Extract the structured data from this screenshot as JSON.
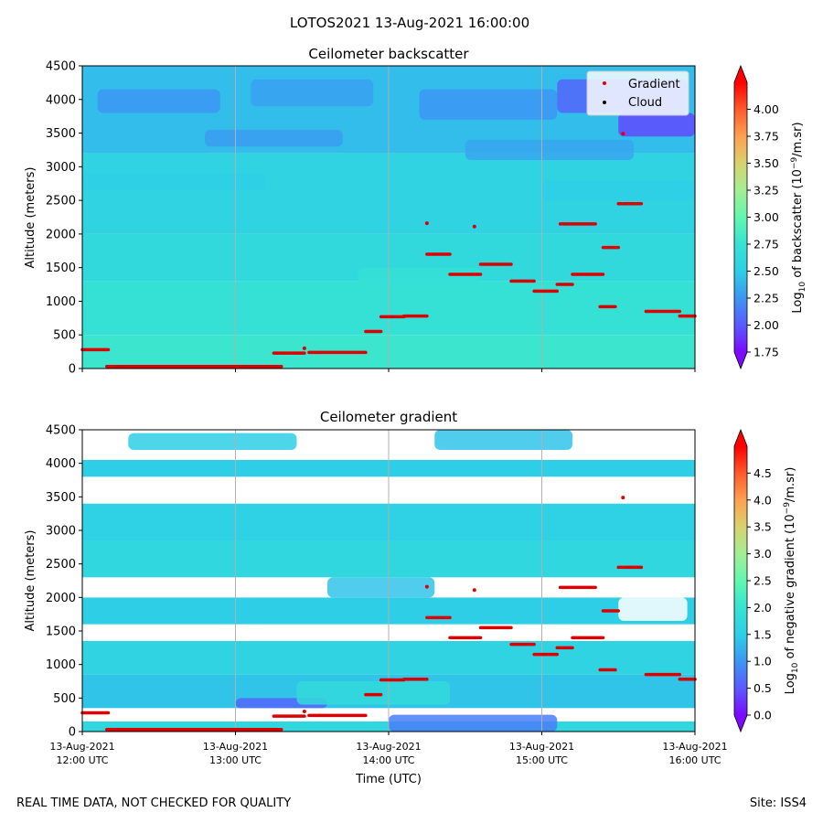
{
  "figure_title": "LOTOS2021 13-Aug-2021 16:00:00",
  "footer_left": "REAL TIME DATA, NOT CHECKED FOR QUALITY",
  "footer_right": "Site: ISS4",
  "colors": {
    "point": "#dd0000",
    "gap": "#ffffff",
    "colormap": [
      "#7b0aff",
      "#5a5afe",
      "#3c96f4",
      "#2ecfe6",
      "#36e3d2",
      "#62f7b0",
      "#a4ee92",
      "#d8d26e",
      "#ffa050",
      "#ff5a2c",
      "#ff0000"
    ]
  },
  "chart_data": [
    {
      "type": "heatmap",
      "name": "backscatter",
      "title": "Ceilometer backscatter",
      "xlabel": "",
      "ylabel": "Altitude (meters)",
      "xlim": [
        0,
        4
      ],
      "ylim": [
        0,
        4500
      ],
      "yticks": [
        "0",
        "500",
        "1000",
        "1500",
        "2000",
        "2500",
        "3000",
        "3500",
        "4000",
        "4500"
      ],
      "xtick_labels_shown": false,
      "colorbar": {
        "label_prefix": "Log",
        "label_sub": "10",
        "label_mid": " of backscatter (10",
        "label_sup": "−9",
        "label_suffix": "/m.sr)",
        "range": [
          1.75,
          4.25
        ],
        "ticks": [
          "1.75",
          "2.00",
          "2.25",
          "2.50",
          "2.75",
          "3.00",
          "3.25",
          "3.50",
          "3.75",
          "4.00"
        ]
      },
      "legend": {
        "position": "top-right",
        "entries": [
          {
            "label": "Gradient",
            "marker": "red-dot"
          },
          {
            "label": "Cloud",
            "marker": "black-dot"
          }
        ]
      },
      "field_layers": [
        {
          "bottom": 0,
          "top": 500,
          "value": 2.78
        },
        {
          "bottom": 500,
          "top": 1300,
          "value": 2.72
        },
        {
          "bottom": 1300,
          "top": 2000,
          "value": 2.62
        },
        {
          "bottom": 2000,
          "top": 3200,
          "value": 2.55
        },
        {
          "bottom": 3200,
          "top": 4500,
          "value": 2.42
        }
      ],
      "field_patches": [
        {
          "x0": 0.1,
          "x1": 0.9,
          "y0": 3800,
          "y1": 4150,
          "value": 2.25
        },
        {
          "x0": 1.1,
          "x1": 1.9,
          "y0": 3900,
          "y1": 4300,
          "value": 2.3
        },
        {
          "x0": 0.8,
          "x1": 1.7,
          "y0": 3300,
          "y1": 3550,
          "value": 2.28
        },
        {
          "x0": 2.2,
          "x1": 3.1,
          "y0": 3700,
          "y1": 4150,
          "value": 2.25
        },
        {
          "x0": 3.1,
          "x1": 3.95,
          "y0": 3800,
          "y1": 4300,
          "value": 2.05
        },
        {
          "x0": 3.5,
          "x1": 4.0,
          "y0": 3450,
          "y1": 3800,
          "value": 1.95
        },
        {
          "x0": 2.5,
          "x1": 3.6,
          "y0": 3100,
          "y1": 3400,
          "value": 2.32
        },
        {
          "x0": 1.8,
          "x1": 2.6,
          "y0": 1250,
          "y1": 1500,
          "value": 2.7
        },
        {
          "x0": 0.0,
          "x1": 1.2,
          "y0": 2650,
          "y1": 2900,
          "value": 2.5
        },
        {
          "x0": 3.0,
          "x1": 4.0,
          "y0": 2500,
          "y1": 2800,
          "value": 2.5
        }
      ]
    },
    {
      "type": "heatmap",
      "name": "gradient",
      "title": "Ceilometer gradient",
      "xlabel": "Time (UTC)",
      "ylabel": "Altitude (meters)",
      "xlim": [
        0,
        4
      ],
      "ylim": [
        0,
        4500
      ],
      "yticks": [
        "0",
        "500",
        "1000",
        "1500",
        "2000",
        "2500",
        "3000",
        "3500",
        "4000",
        "4500"
      ],
      "xtick_labels_shown": true,
      "colorbar": {
        "label_prefix": "Log",
        "label_sub": "10",
        "label_mid": " of negative gradient (10",
        "label_sup": "−9",
        "label_suffix": "/m.sr)",
        "range": [
          0,
          5
        ],
        "ticks": [
          "0.0",
          "0.5",
          "1.0",
          "1.5",
          "2.0",
          "2.5",
          "3.0",
          "3.5",
          "4.0",
          "4.5"
        ]
      },
      "field_layers": [
        {
          "bottom": 0,
          "top": 150,
          "value": 1.7
        },
        {
          "bottom": 150,
          "top": 350,
          "value": null
        },
        {
          "bottom": 350,
          "top": 850,
          "value": 1.4
        },
        {
          "bottom": 850,
          "top": 1350,
          "value": 1.6
        },
        {
          "bottom": 1350,
          "top": 1600,
          "value": null
        },
        {
          "bottom": 1600,
          "top": 2000,
          "value": 1.5
        },
        {
          "bottom": 2000,
          "top": 2300,
          "value": null
        },
        {
          "bottom": 2300,
          "top": 2850,
          "value": 1.7
        },
        {
          "bottom": 2850,
          "top": 3400,
          "value": 1.55
        },
        {
          "bottom": 3400,
          "top": 3800,
          "value": null
        },
        {
          "bottom": 3800,
          "top": 4050,
          "value": 1.5
        },
        {
          "bottom": 4050,
          "top": 4500,
          "value": null
        }
      ],
      "field_patches": [
        {
          "x0": 2.3,
          "x1": 3.2,
          "y0": 4200,
          "y1": 4500,
          "value": 1.4
        },
        {
          "x0": 0.3,
          "x1": 1.4,
          "y0": 4200,
          "y1": 4450,
          "value": 1.5
        },
        {
          "x0": 1.6,
          "x1": 2.3,
          "y0": 2000,
          "y1": 2300,
          "value": 1.4
        },
        {
          "x0": 1.0,
          "x1": 1.6,
          "y0": 350,
          "y1": 500,
          "value": 0.6
        },
        {
          "x0": 1.4,
          "x1": 2.4,
          "y0": 400,
          "y1": 750,
          "value": 1.8
        },
        {
          "x0": 2.0,
          "x1": 3.1,
          "y0": 0,
          "y1": 250,
          "value": 0.8
        },
        {
          "x0": 3.5,
          "x1": 3.95,
          "y0": 1650,
          "y1": 2000,
          "value": null
        }
      ],
      "xticks": [
        {
          "x": 0,
          "line1": "13-Aug-2021",
          "line2": "12:00 UTC"
        },
        {
          "x": 1,
          "line1": "13-Aug-2021",
          "line2": "13:00 UTC"
        },
        {
          "x": 2,
          "line1": "13-Aug-2021",
          "line2": "14:00 UTC"
        },
        {
          "x": 3,
          "line1": "13-Aug-2021",
          "line2": "15:00 UTC"
        },
        {
          "x": 4,
          "line1": "13-Aug-2021",
          "line2": "16:00 UTC"
        }
      ]
    }
  ],
  "gradient_points": [
    {
      "x0": 0.0,
      "x1": 0.17,
      "y": 280
    },
    {
      "x0": 0.16,
      "x1": 1.3,
      "y": 30
    },
    {
      "x0": 1.25,
      "x1": 1.45,
      "y": 230
    },
    {
      "x0": 1.45,
      "x1": 1.48,
      "y": 300
    },
    {
      "x0": 1.48,
      "x1": 1.55,
      "y": 240
    },
    {
      "x0": 1.55,
      "x1": 1.85,
      "y": 240
    },
    {
      "x0": 1.85,
      "x1": 1.95,
      "y": 550
    },
    {
      "x0": 1.95,
      "x1": 2.1,
      "y": 770
    },
    {
      "x0": 2.1,
      "x1": 2.25,
      "y": 780
    },
    {
      "x0": 2.25,
      "x1": 2.4,
      "y": 1700
    },
    {
      "x0": 2.4,
      "x1": 2.6,
      "y": 1400
    },
    {
      "x0": 2.6,
      "x1": 2.8,
      "y": 1550
    },
    {
      "x0": 2.8,
      "x1": 2.95,
      "y": 1300
    },
    {
      "x0": 2.95,
      "x1": 3.1,
      "y": 1150
    },
    {
      "x0": 3.1,
      "x1": 3.2,
      "y": 1250
    },
    {
      "x0": 3.2,
      "x1": 3.4,
      "y": 1400
    },
    {
      "x0": 3.4,
      "x1": 3.5,
      "y": 1800
    },
    {
      "x0": 3.5,
      "x1": 3.65,
      "y": 2450
    },
    {
      "x0": 3.68,
      "x1": 3.9,
      "y": 850
    },
    {
      "x0": 3.9,
      "x1": 4.0,
      "y": 780
    },
    {
      "x0": 3.12,
      "x1": 3.35,
      "y": 2150
    },
    {
      "x0": 3.38,
      "x1": 3.48,
      "y": 920
    },
    {
      "x0": 3.53,
      "x1": 3.57,
      "y": 3490
    },
    {
      "x0": 2.25,
      "x1": 2.26,
      "y": 2160
    },
    {
      "x0": 2.56,
      "x1": 2.57,
      "y": 2110
    }
  ]
}
